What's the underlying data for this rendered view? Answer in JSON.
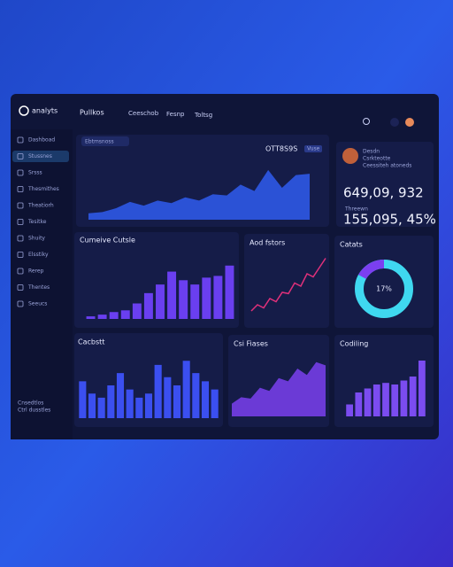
{
  "header": {
    "logo": "analyts",
    "nav": [
      "Pullkos",
      "Ceeschob",
      "Fesnp",
      "Toltsg"
    ]
  },
  "sidebar": {
    "items": [
      "Dashboad",
      "Stussnes",
      "Srsss",
      "Thesmithes",
      "Theatiorh",
      "Tesitke",
      "Shuity",
      "Elsstiky",
      "Rerep",
      "Thentes",
      "Seeucs"
    ],
    "footer": [
      "Cnsedtlos",
      "Ctrl dusstles"
    ]
  },
  "main_chart": {
    "dropdown": "Ebtmsnoss",
    "title": "OTT8S9S",
    "badge": "Vuse",
    "type": "area",
    "values": [
      10,
      12,
      18,
      28,
      22,
      30,
      26,
      35,
      30,
      40,
      38,
      55,
      45,
      78,
      50,
      70,
      72
    ],
    "ylim": [
      0,
      100
    ],
    "color": "#2f5cf0"
  },
  "profile": {
    "name": "Desdn",
    "role": "Csrkteotte",
    "note": "Ceessiteh atoneds",
    "stat1": "649,09, 932",
    "label2": "Threewn",
    "stat2": "155,095, 45%"
  },
  "widgets": [
    {
      "title": "Cumeive Cutsle",
      "type": "bar",
      "values": [
        3,
        5,
        8,
        10,
        18,
        30,
        40,
        55,
        45,
        40,
        48,
        50,
        62
      ],
      "ylim": [
        0,
        70
      ],
      "color": "#6a3ff0"
    },
    {
      "title": "Aod fstors",
      "type": "line",
      "values": [
        10,
        20,
        15,
        30,
        25,
        40,
        38,
        55,
        50,
        70,
        65,
        80,
        95
      ],
      "ylim": [
        0,
        100
      ],
      "color": "#e0307a"
    },
    {
      "title": "Catats",
      "type": "donut",
      "value": 17,
      "label": "17%",
      "color": "#7b3ff0",
      "track": "#3fd8f0"
    },
    {
      "title": "Cacbstt",
      "type": "bar",
      "values": [
        45,
        30,
        25,
        40,
        55,
        35,
        25,
        30,
        65,
        50,
        40,
        70,
        55,
        45,
        35
      ],
      "ylim": [
        0,
        80
      ],
      "color": "#3b4ff0"
    },
    {
      "title": "Csi Fiases",
      "type": "area",
      "values": [
        20,
        30,
        28,
        45,
        40,
        60,
        55,
        75,
        65,
        85,
        80
      ],
      "ylim": [
        0,
        100
      ],
      "color": "#7a3ff0"
    },
    {
      "title": "Codiling",
      "type": "bar",
      "values": [
        15,
        30,
        35,
        40,
        42,
        40,
        45,
        50,
        70
      ],
      "ylim": [
        0,
        80
      ],
      "color": "#7b4cf0"
    }
  ]
}
